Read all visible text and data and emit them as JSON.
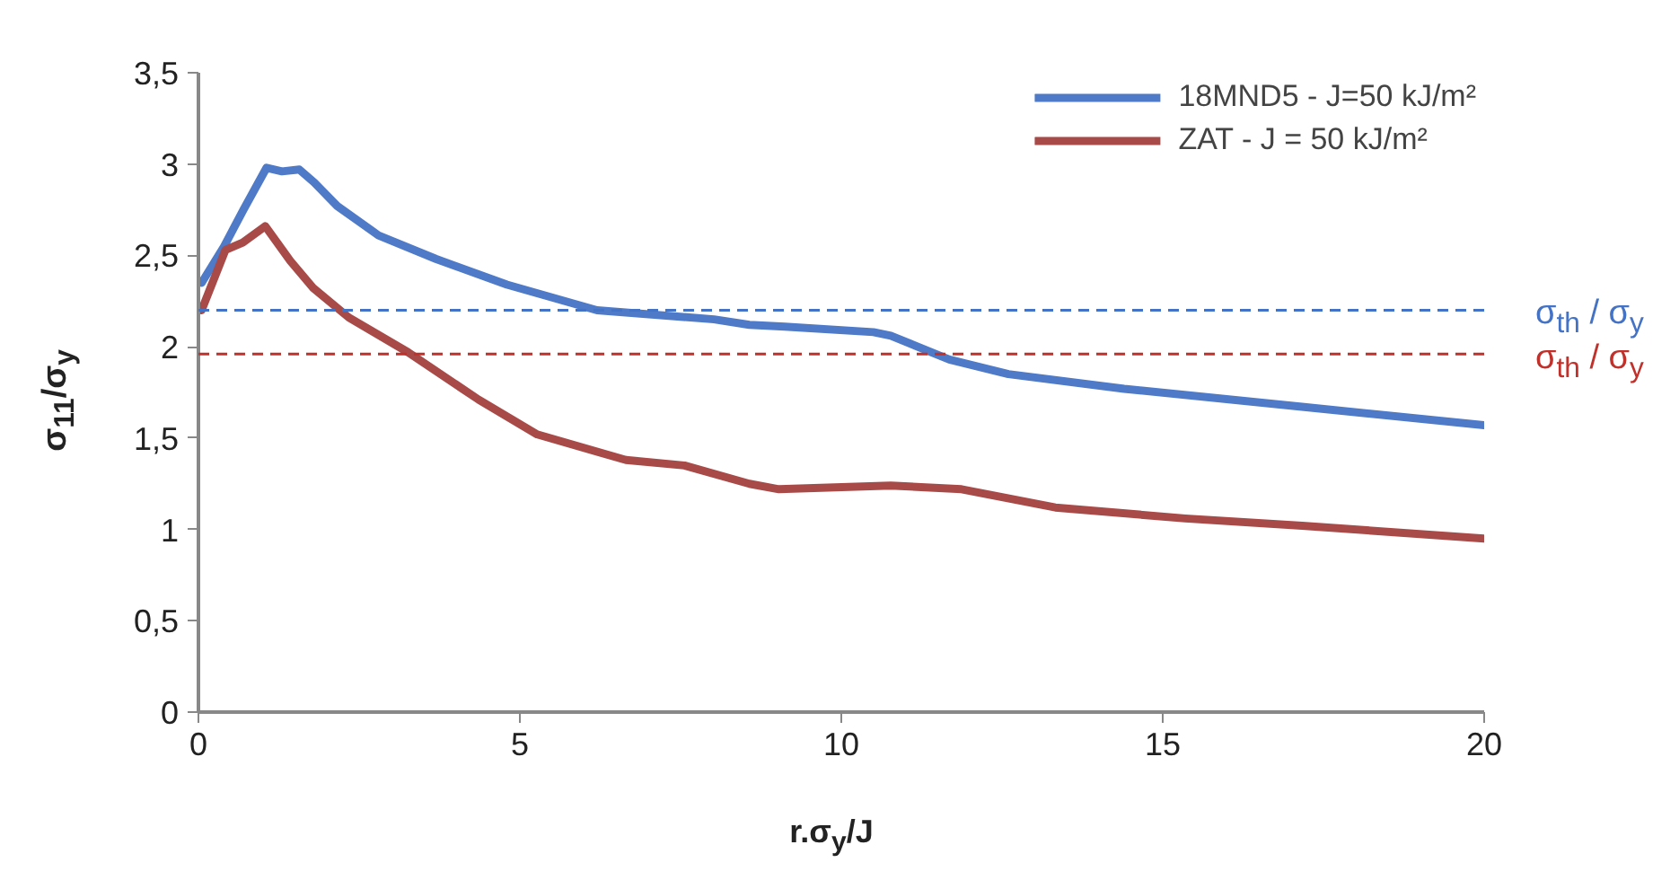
{
  "chart_data": {
    "type": "line",
    "xlabel": "r.σ$_{y}$/J",
    "ylabel": "σ$_{11}$/σ$_{y}$",
    "xlim": [
      0,
      20
    ],
    "xticks": [
      0,
      5,
      10,
      15,
      20
    ],
    "ylim": [
      0,
      3.5
    ],
    "yticks": [
      0,
      {
        "value": 0.5,
        "label": "0,5"
      },
      1,
      {
        "value": 1.5,
        "label": "1,5"
      },
      2,
      {
        "value": 2.5,
        "label": "2,5"
      },
      3,
      {
        "value": 3.5,
        "label": "3,5"
      }
    ],
    "grid": false,
    "legend": "top right",
    "marker": "none",
    "line_style": "solid",
    "series": [
      {
        "name": "18MND5 - J=50 kJ/m²",
        "color": "#4f7ac7",
        "x": [
          0.05,
          0.4,
          0.7,
          1.06,
          1.3,
          1.57,
          1.8,
          2.16,
          2.8,
          3.7,
          4.8,
          6.2,
          8.02,
          8.57,
          9.12,
          10.5,
          10.77,
          11.68,
          12.6,
          14.4,
          17.2,
          20
        ],
        "values": [
          2.35,
          2.55,
          2.75,
          2.98,
          2.96,
          2.97,
          2.9,
          2.77,
          2.61,
          2.48,
          2.34,
          2.2,
          2.15,
          2.12,
          2.11,
          2.08,
          2.06,
          1.93,
          1.85,
          1.77,
          1.67,
          1.57
        ]
      },
      {
        "name": "ZAT - J = 50 kJ/m²",
        "color": "#a84a48",
        "x": [
          0.05,
          0.42,
          0.69,
          1.04,
          1.43,
          1.79,
          2.34,
          3.26,
          4.36,
          5.27,
          6.65,
          7.56,
          8.57,
          9.03,
          10.77,
          11.87,
          13.33,
          15.35,
          17.17,
          20
        ],
        "values": [
          2.2,
          2.53,
          2.57,
          2.66,
          2.47,
          2.32,
          2.16,
          1.97,
          1.71,
          1.52,
          1.38,
          1.35,
          1.25,
          1.22,
          1.24,
          1.22,
          1.12,
          1.06,
          1.02,
          0.95
        ]
      }
    ],
    "ref_lines": [
      {
        "axis": "y",
        "value": 2.2,
        "label": "σ$_{th}$ / σ$_{y}$",
        "color": "#4472c4",
        "line_style": "dashed"
      },
      {
        "axis": "y",
        "value": 1.96,
        "label": "σ$_{th}$ / σ$_{y}$",
        "color": "#c0312b",
        "line_style": "dashed"
      }
    ]
  }
}
